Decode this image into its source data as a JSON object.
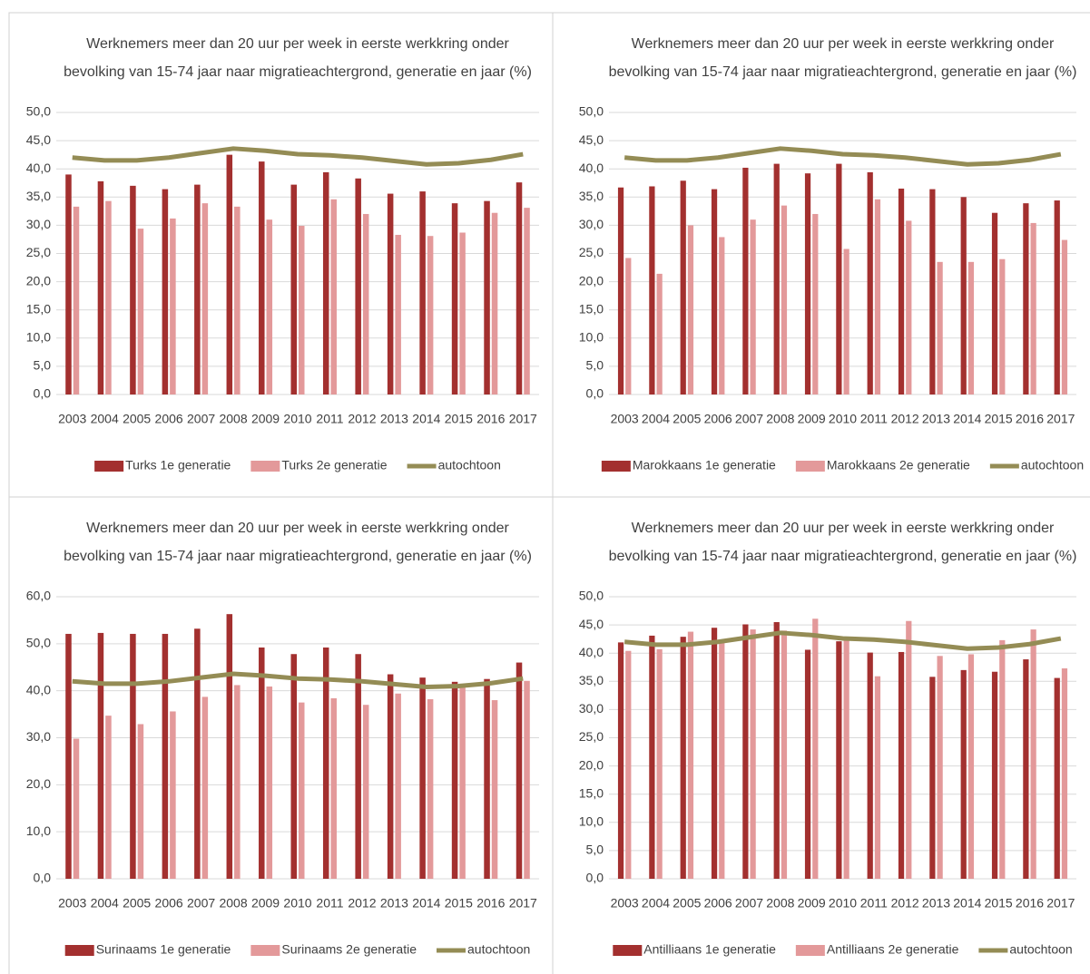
{
  "chart_data": [
    {
      "type": "bar",
      "title": [
        "Werknemers meer dan 20 uur per week in eerste werkkring onder",
        "bevolking van 15-74 jaar naar migratieachtergrond, generatie en jaar (%)"
      ],
      "categories": [
        "2003",
        "2004",
        "2005",
        "2006",
        "2007",
        "2008",
        "2009",
        "2010",
        "2011",
        "2012",
        "2013",
        "2014",
        "2015",
        "2016",
        "2017"
      ],
      "series": [
        {
          "name": "Turks 1e generatie",
          "color": "#a3302f",
          "values": [
            39.0,
            37.8,
            37.0,
            36.4,
            37.2,
            42.5,
            41.3,
            37.2,
            39.4,
            38.3,
            35.6,
            36.0,
            33.9,
            34.3,
            37.6
          ]
        },
        {
          "name": "Turks 2e generatie",
          "color": "#e3999a",
          "values": [
            33.3,
            34.3,
            29.4,
            31.2,
            33.9,
            33.3,
            31.0,
            29.9,
            34.6,
            32.0,
            28.3,
            28.1,
            28.7,
            32.2,
            33.1
          ]
        },
        {
          "name": "autochtoon",
          "type": "line",
          "color": "#948c55",
          "values": [
            42.0,
            41.5,
            41.5,
            42.0,
            42.8,
            43.6,
            43.2,
            42.6,
            42.4,
            42.0,
            41.4,
            40.8,
            41.0,
            41.6,
            42.6
          ]
        }
      ],
      "ylim": [
        0,
        50
      ],
      "yticks": [
        {
          "value": 0,
          "label": "0,0"
        },
        {
          "value": 5,
          "label": "5,0"
        },
        {
          "value": 10,
          "label": "10,0"
        },
        {
          "value": 15,
          "label": "15,0"
        },
        {
          "value": 20,
          "label": "20,0"
        },
        {
          "value": 25,
          "label": "25,0"
        },
        {
          "value": 30,
          "label": "30,0"
        },
        {
          "value": 35,
          "label": "35,0"
        },
        {
          "value": 40,
          "label": "40,0"
        },
        {
          "value": 45,
          "label": "45,0"
        },
        {
          "value": 50,
          "label": "50,0"
        }
      ],
      "grid": true,
      "legend": "bottom"
    },
    {
      "type": "bar",
      "title": [
        "Werknemers meer dan 20 uur per week in eerste werkkring onder",
        "bevolking van 15-74 jaar naar migratieachtergrond, generatie en jaar (%)"
      ],
      "categories": [
        "2003",
        "2004",
        "2005",
        "2006",
        "2007",
        "2008",
        "2009",
        "2010",
        "2011",
        "2012",
        "2013",
        "2014",
        "2015",
        "2016",
        "2017"
      ],
      "series": [
        {
          "name": "Marokkaans 1e generatie",
          "color": "#a3302f",
          "values": [
            36.7,
            36.9,
            37.9,
            36.4,
            40.2,
            40.9,
            39.2,
            40.9,
            39.4,
            36.5,
            36.4,
            35.0,
            32.2,
            33.9,
            34.4
          ]
        },
        {
          "name": "Marokkaans 2e generatie",
          "color": "#e3999a",
          "values": [
            24.2,
            21.4,
            30.0,
            27.9,
            31.0,
            33.5,
            32.0,
            25.8,
            34.6,
            30.8,
            23.5,
            23.5,
            24.0,
            30.4,
            27.4
          ]
        },
        {
          "name": "autochtoon",
          "type": "line",
          "color": "#948c55",
          "values": [
            42.0,
            41.5,
            41.5,
            42.0,
            42.8,
            43.6,
            43.2,
            42.6,
            42.4,
            42.0,
            41.4,
            40.8,
            41.0,
            41.6,
            42.6
          ]
        }
      ],
      "ylim": [
        0,
        50
      ],
      "yticks": [
        {
          "value": 0,
          "label": "0,0"
        },
        {
          "value": 5,
          "label": "5,0"
        },
        {
          "value": 10,
          "label": "10,0"
        },
        {
          "value": 15,
          "label": "15,0"
        },
        {
          "value": 20,
          "label": "20,0"
        },
        {
          "value": 25,
          "label": "25,0"
        },
        {
          "value": 30,
          "label": "30,0"
        },
        {
          "value": 35,
          "label": "35,0"
        },
        {
          "value": 40,
          "label": "40,0"
        },
        {
          "value": 45,
          "label": "45,0"
        },
        {
          "value": 50,
          "label": "50,0"
        }
      ],
      "grid": true,
      "legend": "bottom"
    },
    {
      "type": "bar",
      "title": [
        "Werknemers meer dan 20 uur per week in eerste werkkring onder",
        "bevolking van 15-74 jaar naar migratieachtergrond, generatie en jaar (%)"
      ],
      "categories": [
        "2003",
        "2004",
        "2005",
        "2006",
        "2007",
        "2008",
        "2009",
        "2010",
        "2011",
        "2012",
        "2013",
        "2014",
        "2015",
        "2016",
        "2017"
      ],
      "series": [
        {
          "name": "Surinaams 1e generatie",
          "color": "#a3302f",
          "values": [
            52.1,
            52.3,
            52.1,
            52.1,
            53.2,
            56.3,
            49.2,
            47.8,
            49.2,
            47.8,
            43.5,
            42.8,
            41.9,
            42.5,
            46.0
          ]
        },
        {
          "name": "Surinaams 2e generatie",
          "color": "#e3999a",
          "values": [
            29.8,
            34.7,
            32.9,
            35.6,
            38.7,
            41.2,
            40.9,
            37.5,
            38.4,
            37.0,
            39.4,
            38.2,
            41.1,
            38.0,
            42.1
          ]
        },
        {
          "name": "autochtoon",
          "type": "line",
          "color": "#948c55",
          "values": [
            42.0,
            41.5,
            41.5,
            42.0,
            42.8,
            43.6,
            43.2,
            42.6,
            42.4,
            42.0,
            41.4,
            40.8,
            41.0,
            41.6,
            42.6
          ]
        }
      ],
      "ylim": [
        0,
        60
      ],
      "yticks": [
        {
          "value": 0,
          "label": "0,0"
        },
        {
          "value": 10,
          "label": "10,0"
        },
        {
          "value": 20,
          "label": "20,0"
        },
        {
          "value": 30,
          "label": "30,0"
        },
        {
          "value": 40,
          "label": "40,0"
        },
        {
          "value": 50,
          "label": "50,0"
        },
        {
          "value": 60,
          "label": "60,0"
        }
      ],
      "grid": true,
      "legend": "bottom"
    },
    {
      "type": "bar",
      "title": [
        "Werknemers meer dan 20 uur per week in eerste werkkring onder",
        "bevolking van 15-74 jaar naar migratieachtergrond, generatie en jaar (%)"
      ],
      "categories": [
        "2003",
        "2004",
        "2005",
        "2006",
        "2007",
        "2008",
        "2009",
        "2010",
        "2011",
        "2012",
        "2013",
        "2014",
        "2015",
        "2016",
        "2017"
      ],
      "series": [
        {
          "name": "Antilliaans 1e generatie",
          "color": "#a3302f",
          "values": [
            41.9,
            43.1,
            42.9,
            44.5,
            45.1,
            45.5,
            40.6,
            42.1,
            40.1,
            40.2,
            35.8,
            37.0,
            36.7,
            38.9,
            35.6
          ]
        },
        {
          "name": "Antilliaans 2e generatie",
          "color": "#e3999a",
          "values": [
            40.4,
            40.7,
            43.8,
            41.9,
            44.2,
            44.0,
            46.1,
            42.4,
            35.9,
            45.7,
            39.5,
            39.8,
            42.3,
            44.2,
            37.3
          ]
        },
        {
          "name": "autochtoon",
          "type": "line",
          "color": "#948c55",
          "values": [
            42.0,
            41.5,
            41.5,
            42.0,
            42.8,
            43.6,
            43.2,
            42.6,
            42.4,
            42.0,
            41.4,
            40.8,
            41.0,
            41.6,
            42.6
          ]
        }
      ],
      "ylim": [
        0,
        50
      ],
      "yticks": [
        {
          "value": 0,
          "label": "0,0"
        },
        {
          "value": 5,
          "label": "5,0"
        },
        {
          "value": 10,
          "label": "10,0"
        },
        {
          "value": 15,
          "label": "15,0"
        },
        {
          "value": 20,
          "label": "20,0"
        },
        {
          "value": 25,
          "label": "25,0"
        },
        {
          "value": 30,
          "label": "30,0"
        },
        {
          "value": 35,
          "label": "35,0"
        },
        {
          "value": 40,
          "label": "40,0"
        },
        {
          "value": 45,
          "label": "45,0"
        },
        {
          "value": 50,
          "label": "50,0"
        }
      ],
      "grid": true,
      "legend": "bottom"
    }
  ]
}
